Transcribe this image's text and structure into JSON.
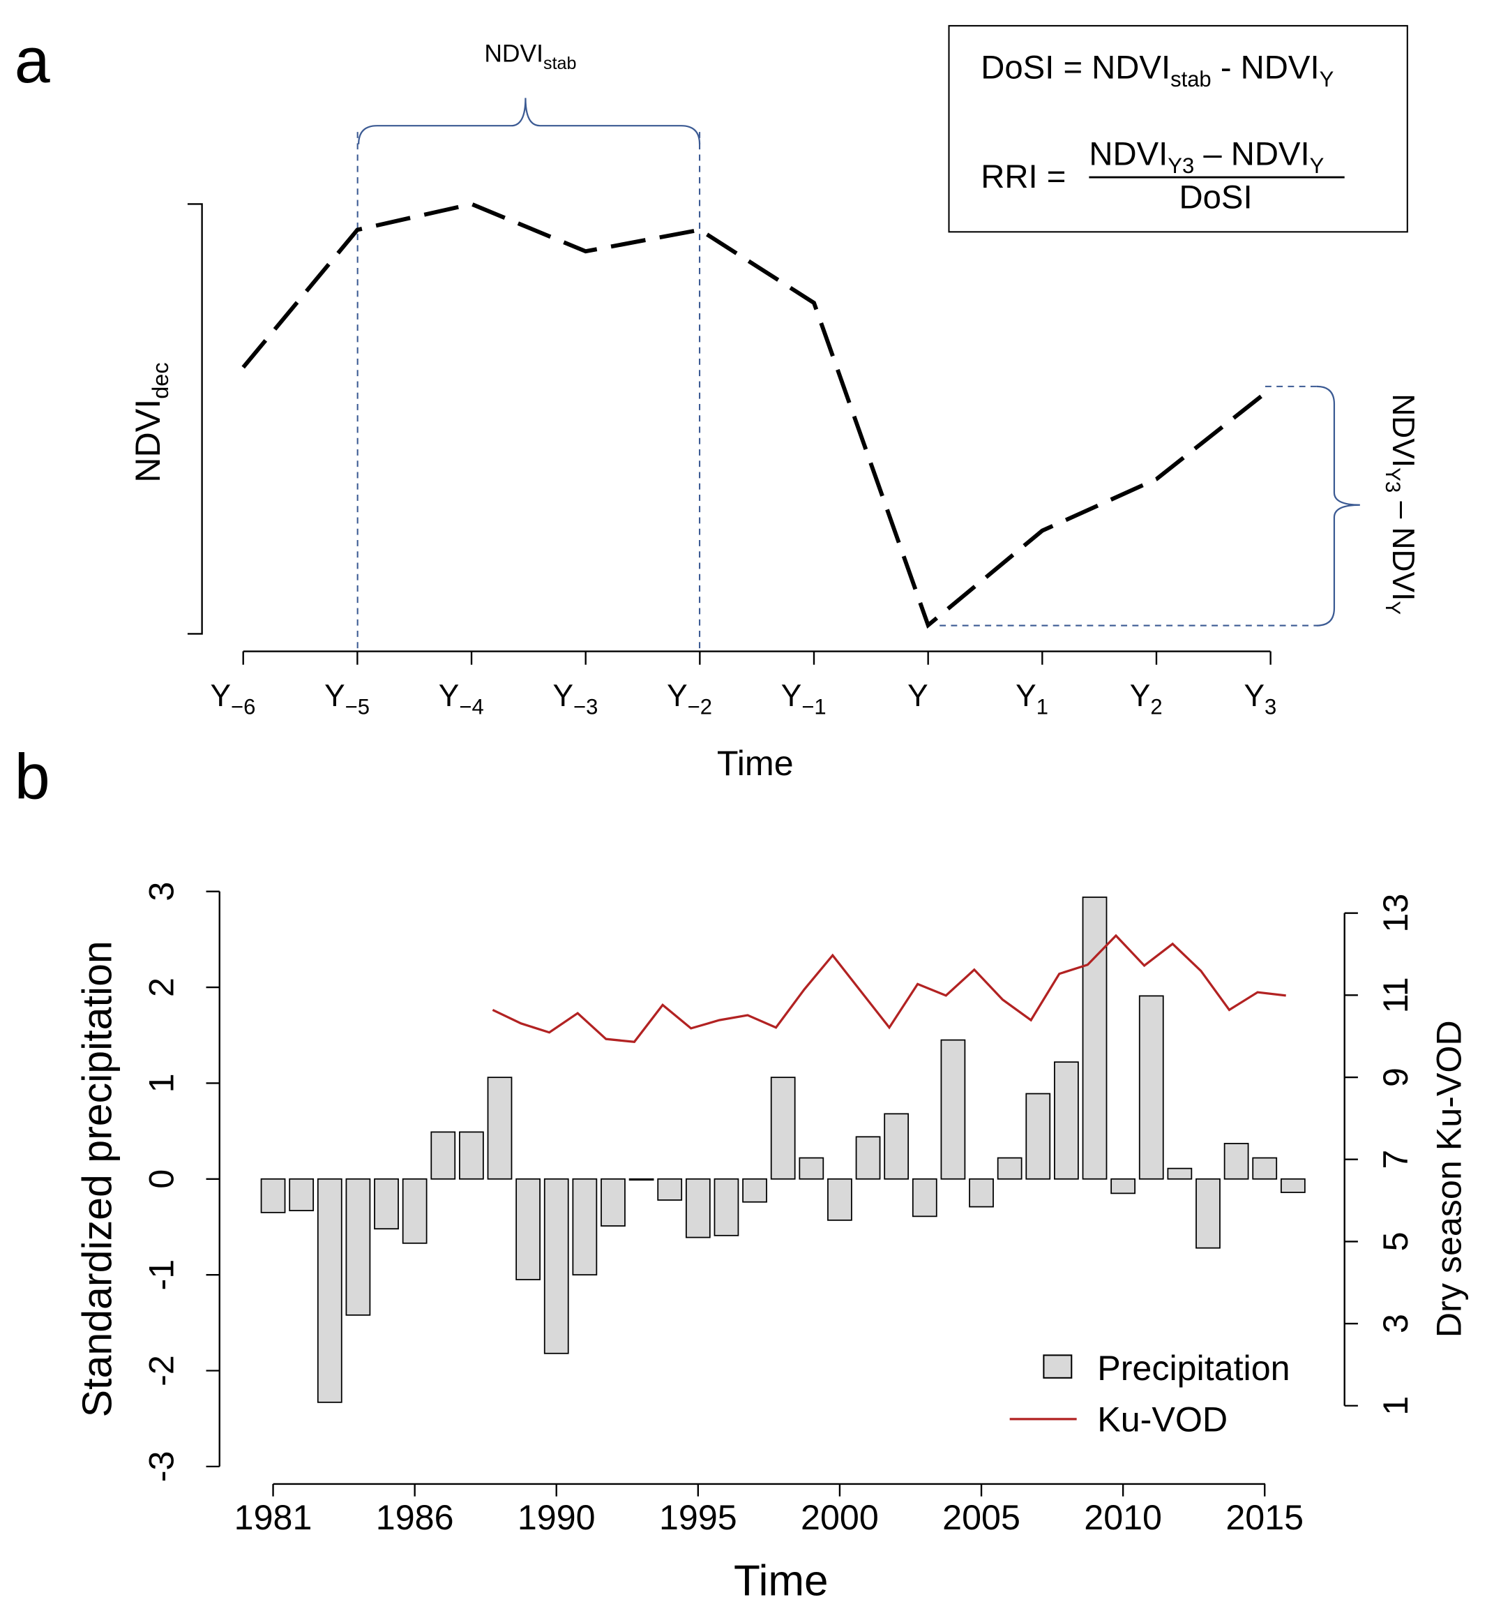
{
  "panel_labels": {
    "a": "a",
    "b": "b"
  },
  "chart_data": [
    {
      "type": "line",
      "panel": "a",
      "xlabel": "Time",
      "ylabel": {
        "main": "NDVI",
        "sub": "dec"
      },
      "categories": [
        {
          "main": "Y",
          "sub": "−6"
        },
        {
          "main": "Y",
          "sub": "−5"
        },
        {
          "main": "Y",
          "sub": "−4"
        },
        {
          "main": "Y",
          "sub": "−3"
        },
        {
          "main": "Y",
          "sub": "−2"
        },
        {
          "main": "Y",
          "sub": "−1"
        },
        {
          "main": "Y",
          "sub": ""
        },
        {
          "main": "Y",
          "sub": "1"
        },
        {
          "main": "Y",
          "sub": "2"
        },
        {
          "main": "Y",
          "sub": "3"
        }
      ],
      "values": [
        0.62,
        0.94,
        1.0,
        0.89,
        0.94,
        0.77,
        0.02,
        0.24,
        0.36,
        0.57
      ],
      "line_style": "dashed",
      "annotations": {
        "stab": {
          "main": "NDVI",
          "sub": "stab"
        },
        "recovery": {
          "a": "NDVI",
          "a_sub": "Y3",
          "op": " – ",
          "b": "NDVI",
          "b_sub": "Y"
        }
      },
      "formula_box": {
        "dosi": {
          "lhs": "DoSI = ",
          "t1": "NDVI",
          "t1_sub": "stab",
          "op": " - ",
          "t2": "NDVI",
          "t2_sub": "Y"
        },
        "rri": {
          "lhs": "RRI = ",
          "n1": "NDVI",
          "n1_sub": "Y3",
          "op": " – ",
          "n2": "NDVI",
          "n2_sub": "Y",
          "den": "DoSI"
        }
      },
      "colors": {
        "annotation": "#3b5a93",
        "line": "#000000"
      }
    },
    {
      "type": "bar",
      "panel": "b",
      "xlabel": "Time",
      "ylabel": "Standardized precipitation",
      "y2label": "Dry season Ku-VOD",
      "ylim": [
        -3,
        3
      ],
      "y2lim": [
        1,
        13
      ],
      "yticks": [
        "3",
        "2",
        "1",
        "0",
        "-1",
        "-2",
        "-3"
      ],
      "y2ticks": [
        "13",
        "11",
        "9",
        "7",
        "5",
        "3",
        "1"
      ],
      "xtick_labels": [
        "1981",
        "1986",
        "1990",
        "1995",
        "2000",
        "2005",
        "2010",
        "2015"
      ],
      "years": [
        1981,
        1982,
        1983,
        1984,
        1985,
        1986,
        1987,
        1988,
        1989,
        1990,
        1991,
        1992,
        1993,
        1994,
        1995,
        1996,
        1997,
        1998,
        1999,
        2000,
        2001,
        2002,
        2003,
        2004,
        2005,
        2006,
        2007,
        2008,
        2009,
        2010,
        2011,
        2012,
        2013,
        2014,
        2015,
        2016,
        2017
      ],
      "series": [
        {
          "name": "Precipitation",
          "type": "bar",
          "color": "#d9d9d9",
          "values": [
            -0.35,
            -0.33,
            -2.33,
            -1.42,
            -0.52,
            -0.67,
            0.49,
            0.49,
            1.06,
            -1.05,
            -1.82,
            -1.0,
            -0.49,
            -0.01,
            -0.22,
            -0.61,
            -0.59,
            -0.24,
            1.06,
            0.22,
            -0.43,
            0.44,
            0.68,
            -0.39,
            1.45,
            -0.29,
            0.22,
            0.89,
            1.22,
            2.94,
            -0.15,
            1.91,
            0.11,
            -0.72,
            0.37,
            0.22,
            -0.14
          ]
        },
        {
          "name": "Ku-VOD",
          "type": "line",
          "axis": "right",
          "color": "#b22222",
          "years": [
            1988,
            1989,
            1990,
            1991,
            1992,
            1993,
            1994,
            1995,
            1996,
            1997,
            1998,
            1999,
            2000,
            2001,
            2002,
            2003,
            2004,
            2005,
            2006,
            2007,
            2008,
            2009,
            2010,
            2011,
            2012,
            2013,
            2014,
            2015,
            2016
          ],
          "values": [
            10.65,
            10.32,
            10.1,
            10.57,
            9.94,
            9.87,
            10.77,
            10.2,
            10.4,
            10.52,
            10.22,
            11.15,
            11.98,
            11.1,
            10.22,
            11.28,
            11.0,
            11.63,
            10.9,
            10.4,
            11.53,
            11.75,
            12.46,
            11.73,
            12.26,
            11.6,
            10.65,
            11.08,
            11.0
          ]
        }
      ],
      "legend": {
        "placement": "bottom-right",
        "items": [
          "Precipitation",
          "Ku-VOD"
        ]
      },
      "grid": false
    }
  ]
}
